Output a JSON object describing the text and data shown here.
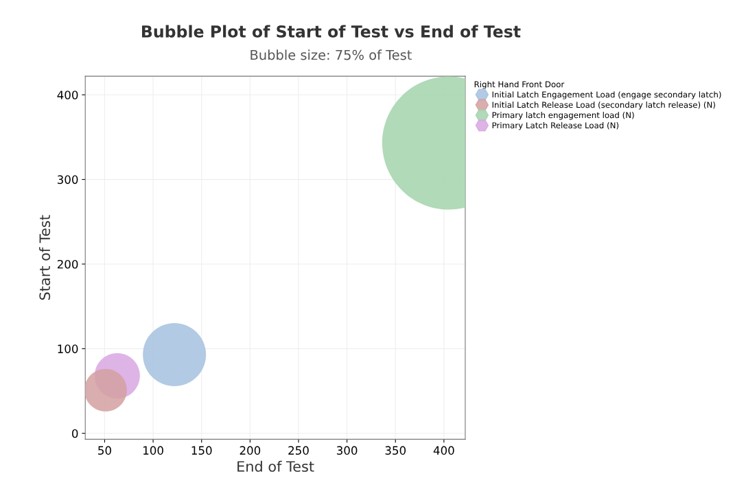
{
  "chart_data": {
    "type": "bubble",
    "title": "Bubble Plot of Start of Test vs End of Test",
    "subtitle": "Bubble size: 75% of Test",
    "xlabel": "End of Test",
    "ylabel": "Start of Test",
    "legend_title": "Right Hand Front Door",
    "series": [
      {
        "name": "Initial Latch Engagement Load (engage secondary latch)",
        "color": "#a5c1de",
        "x": [
          122
        ],
        "values": [
          93
        ],
        "sizes": [
          0.225
        ]
      },
      {
        "name": "Initial Latch Release Load (secondary latch release) (N)",
        "color": "#d4a0a0",
        "x": [
          51
        ],
        "values": [
          51
        ],
        "sizes": [
          0.102
        ]
      },
      {
        "name": "Primary latch engagement load (N)",
        "color": "#a3d4ab",
        "x": [
          405
        ],
        "values": [
          343
        ],
        "sizes": [
          1
        ]
      },
      {
        "name": "Primary Latch Release Load (N)",
        "color": "#d8a7e3",
        "x": [
          63
        ],
        "values": [
          68
        ],
        "sizes": [
          0.116
        ]
      }
    ],
    "xlim": [
      30,
      422
    ],
    "ylim": [
      -7,
      422
    ],
    "xticks": [
      50,
      100,
      150,
      200,
      250,
      300,
      350,
      400
    ],
    "yticks": [
      0,
      100,
      200,
      300,
      400
    ],
    "grid": true,
    "legend": "top right"
  }
}
